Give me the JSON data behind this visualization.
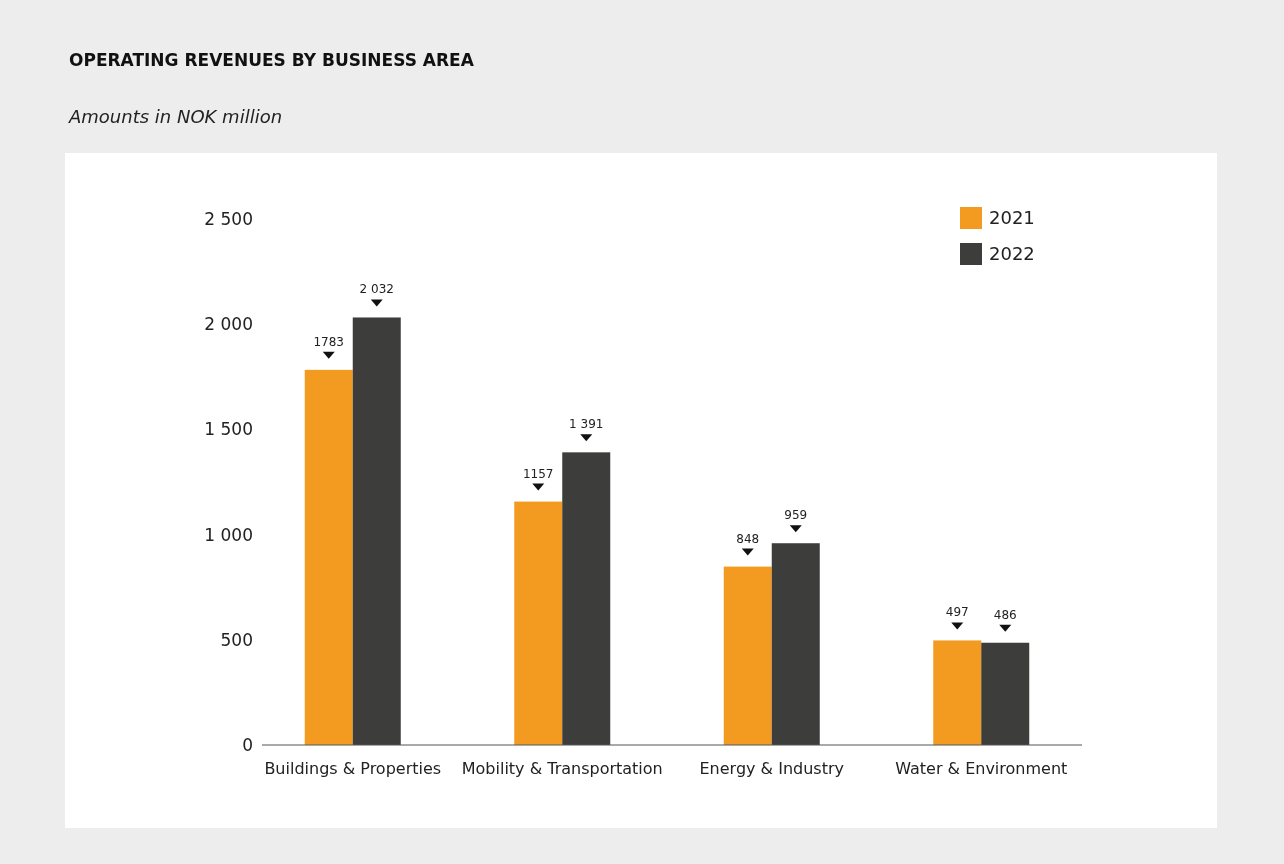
{
  "chart_data": {
    "type": "bar",
    "title": "OPERATING REVENUES BY BUSINESS AREA",
    "subtitle": "Amounts in NOK million",
    "categories": [
      "Buildings & Properties",
      "Mobility & Transportation",
      "Energy & Industry",
      "Water & Environment"
    ],
    "series": [
      {
        "name": "2021",
        "color": "#f39a21",
        "values": [
          1783,
          1157,
          848,
          497
        ],
        "value_labels": [
          "1783",
          "1157",
          "848",
          "497"
        ]
      },
      {
        "name": "2022",
        "color": "#3d3d3b",
        "values": [
          2032,
          1391,
          959,
          486
        ],
        "value_labels": [
          "2 032",
          "1 391",
          "959",
          "486"
        ]
      }
    ],
    "ylim": [
      0,
      2500
    ],
    "yticks": [
      {
        "value": 0,
        "label": "0"
      },
      {
        "value": 500,
        "label": "500"
      },
      {
        "value": 1000,
        "label": "1 000"
      },
      {
        "value": 1500,
        "label": "1 500"
      },
      {
        "value": 2000,
        "label": "2 000"
      },
      {
        "value": 2500,
        "label": "2 500"
      }
    ],
    "legend": "top right"
  }
}
